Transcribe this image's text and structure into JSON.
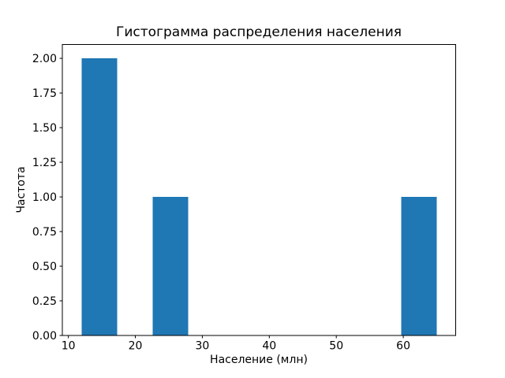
{
  "chart_data": {
    "type": "bar",
    "subtype": "histogram",
    "title": "Гистограмма распределения населения",
    "xlabel": "Население (млн)",
    "ylabel": "Частота",
    "bin_edges": [
      12,
      17.3,
      22.6,
      27.9,
      33.2,
      38.5,
      43.8,
      49.1,
      54.4,
      59.7,
      65
    ],
    "counts": [
      2,
      0,
      1,
      0,
      0,
      0,
      0,
      0,
      0,
      1
    ],
    "bars": [
      {
        "x_range": [
          12,
          17.3
        ],
        "frequency": 2
      },
      {
        "x_range": [
          22.6,
          27.9
        ],
        "frequency": 1
      },
      {
        "x_range": [
          59.7,
          65
        ],
        "frequency": 1
      }
    ],
    "xticks": [
      10,
      20,
      30,
      40,
      50,
      60
    ],
    "yticks": [
      0,
      0.25,
      0.5,
      0.75,
      1,
      1.25,
      1.5,
      1.75,
      2
    ],
    "ytick_labels": [
      "0.00",
      "0.25",
      "0.50",
      "0.75",
      "1.00",
      "1.25",
      "1.50",
      "1.75",
      "2.00"
    ],
    "xlim": [
      9.1,
      67.8
    ],
    "ylim": [
      0,
      2.1
    ],
    "bar_color": "#1f77b4",
    "axis_color": "#000000",
    "background_color": "#ffffff",
    "grid": false,
    "legend": null
  }
}
